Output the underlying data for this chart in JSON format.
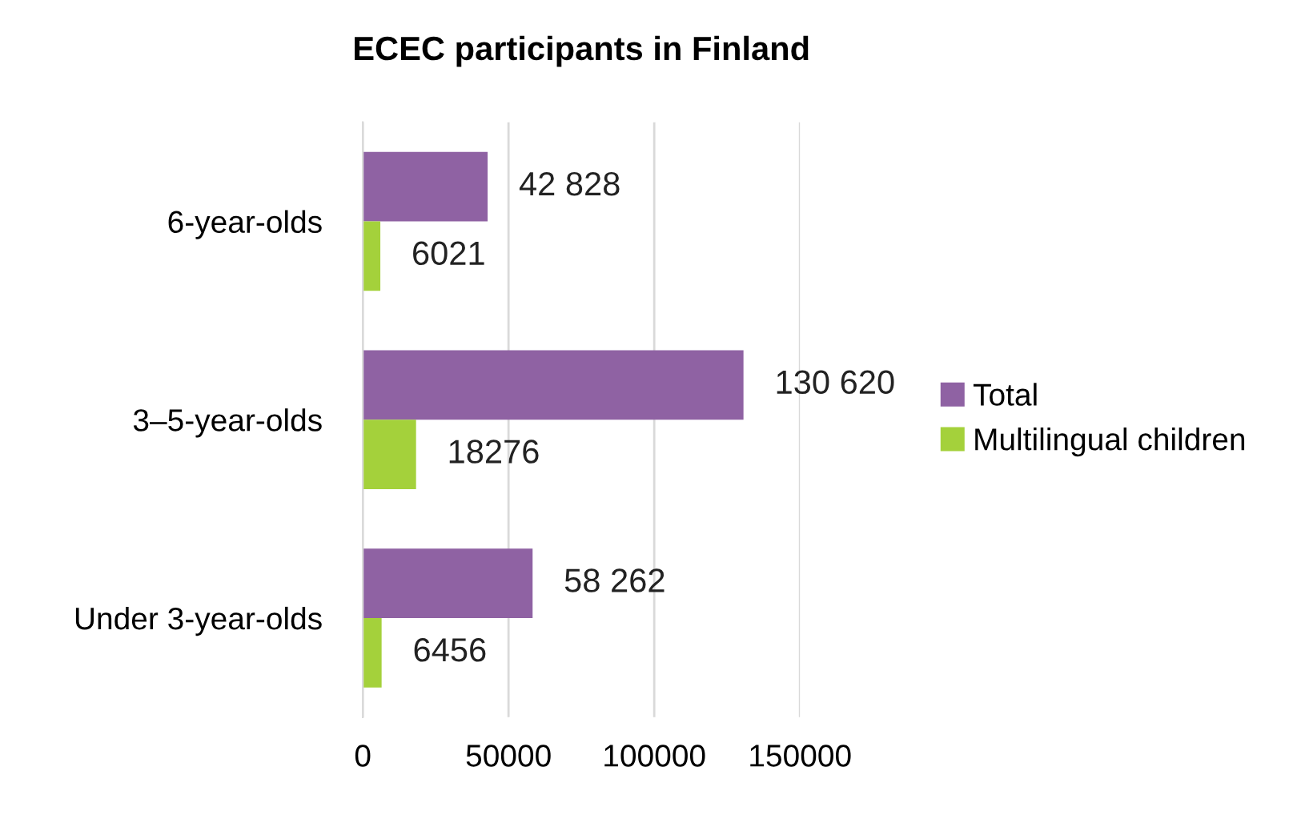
{
  "chart_data": {
    "type": "bar",
    "orientation": "horizontal",
    "title": "ECEC participants in Finland",
    "categories": [
      "6-year-olds",
      "3–5-year-olds",
      "Under 3-year-olds"
    ],
    "series": [
      {
        "name": "Total",
        "color": "#8f62a3",
        "values": [
          42828,
          130620,
          58262
        ],
        "value_labels": [
          "42 828",
          "130 620",
          "58 262"
        ]
      },
      {
        "name": "Multilingual children",
        "color": "#a4d13b",
        "values": [
          6021,
          18276,
          6456
        ],
        "value_labels": [
          "6021",
          "18276",
          "6456"
        ]
      }
    ],
    "xlim": [
      0,
      150000
    ],
    "xticks": [
      0,
      50000,
      100000,
      150000
    ],
    "grid": "x",
    "legend": "right"
  }
}
